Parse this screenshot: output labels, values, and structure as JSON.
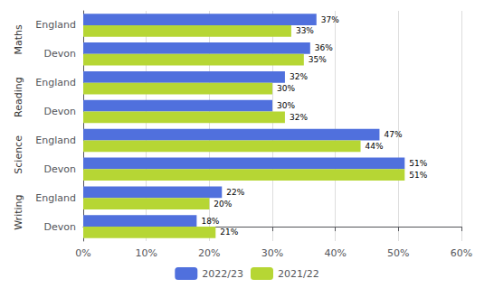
{
  "chart_data": {
    "type": "bar",
    "orientation": "horizontal",
    "categories": [
      "Devon",
      "England",
      "Devon",
      "England",
      "Devon",
      "England",
      "Devon",
      "England"
    ],
    "groups": [
      "Writing",
      "Science",
      "Reading",
      "Maths"
    ],
    "series": [
      {
        "name": "2022/23",
        "values": [
          0.18,
          0.22,
          0.51,
          0.47,
          0.3,
          0.32,
          0.36,
          0.37
        ],
        "value_labels": [
          "18%",
          "22%",
          "51%",
          "47%",
          "30%",
          "32%",
          "36%",
          "37%"
        ]
      },
      {
        "name": "2021/22",
        "values": [
          0.21,
          0.2,
          0.51,
          0.44,
          0.32,
          0.3,
          0.35,
          0.33
        ],
        "value_labels": [
          "21%",
          "20%",
          "51%",
          "44%",
          "32%",
          "30%",
          "35%",
          "33%"
        ]
      }
    ],
    "xlim": [
      0,
      0.6
    ],
    "xticks": [
      {
        "value": 0,
        "label": "0%"
      },
      {
        "value": 0.1,
        "label": "10%"
      },
      {
        "value": 0.2,
        "label": "20%"
      },
      {
        "value": 0.3,
        "label": "30%"
      },
      {
        "value": 0.4,
        "label": "40%"
      },
      {
        "value": 0.5,
        "label": "50%"
      },
      {
        "value": 0.6,
        "label": "60%"
      }
    ],
    "grid": true,
    "legend": "bottom",
    "data_labels": true
  }
}
